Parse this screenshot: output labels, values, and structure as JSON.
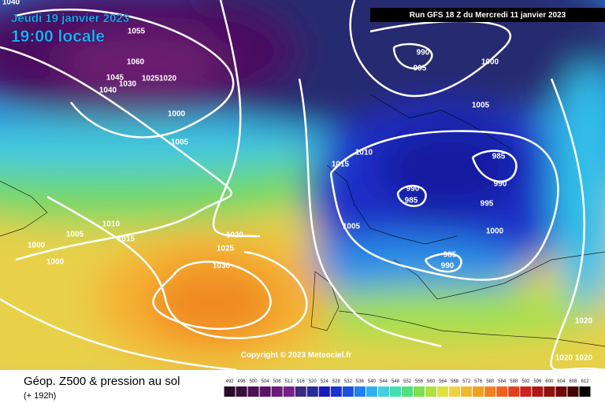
{
  "header": {
    "date": "Jeudi 19 janvier 2023",
    "time": "19:00 locale",
    "run": "Run GFS 18 Z du Mercredi 11 janvier 2023"
  },
  "map": {
    "isobar_labels": [
      "1040",
      "1055",
      "1060",
      "1045",
      "1030",
      "1025",
      "1020",
      "1040",
      "1000",
      "1005",
      "990",
      "995",
      "1000",
      "1005",
      "1010",
      "1015",
      "985",
      "990",
      "990",
      "985",
      "995",
      "1000",
      "985",
      "990",
      "1005",
      "1005",
      "1010",
      "1015",
      "1000",
      "1000",
      "1020",
      "1025",
      "1030",
      "1020",
      "1020",
      "1020"
    ],
    "copyright": "Copyright © 2023 Meteociel.fr"
  },
  "footer": {
    "title": "Géop. Z500 & pression au sol",
    "lead": "(+ 192h)"
  },
  "legend": {
    "scale": [
      {
        "label": 492,
        "color": "#2a0a2a"
      },
      {
        "label": 496,
        "color": "#3a0e3c"
      },
      {
        "label": 500,
        "color": "#4a1250"
      },
      {
        "label": 504,
        "color": "#5a1664"
      },
      {
        "label": 508,
        "color": "#6a1a78"
      },
      {
        "label": 512,
        "color": "#7a1e8c"
      },
      {
        "label": 516,
        "color": "#3a2a80"
      },
      {
        "label": 520,
        "color": "#2a2a9a"
      },
      {
        "label": 524,
        "color": "#1a1ab4"
      },
      {
        "label": 528,
        "color": "#1a30d0"
      },
      {
        "label": 532,
        "color": "#1a50e0"
      },
      {
        "label": 536,
        "color": "#2080f0"
      },
      {
        "label": 540,
        "color": "#30b0f0"
      },
      {
        "label": 544,
        "color": "#40d0e0"
      },
      {
        "label": 548,
        "color": "#40e0b0"
      },
      {
        "label": 552,
        "color": "#50e080"
      },
      {
        "label": 556,
        "color": "#80e050"
      },
      {
        "label": 560,
        "color": "#b0e040"
      },
      {
        "label": 564,
        "color": "#e0e040"
      },
      {
        "label": 568,
        "color": "#f0d040"
      },
      {
        "label": 572,
        "color": "#f0b830"
      },
      {
        "label": 576,
        "color": "#f0a020"
      },
      {
        "label": 580,
        "color": "#f08020"
      },
      {
        "label": 584,
        "color": "#f06020"
      },
      {
        "label": 588,
        "color": "#e04020"
      },
      {
        "label": 592,
        "color": "#d02020"
      },
      {
        "label": 596,
        "color": "#b01818"
      },
      {
        "label": 600,
        "color": "#901010"
      },
      {
        "label": 604,
        "color": "#700808"
      },
      {
        "label": 608,
        "color": "#400404"
      },
      {
        "label": 612,
        "color": "#000000"
      }
    ]
  }
}
